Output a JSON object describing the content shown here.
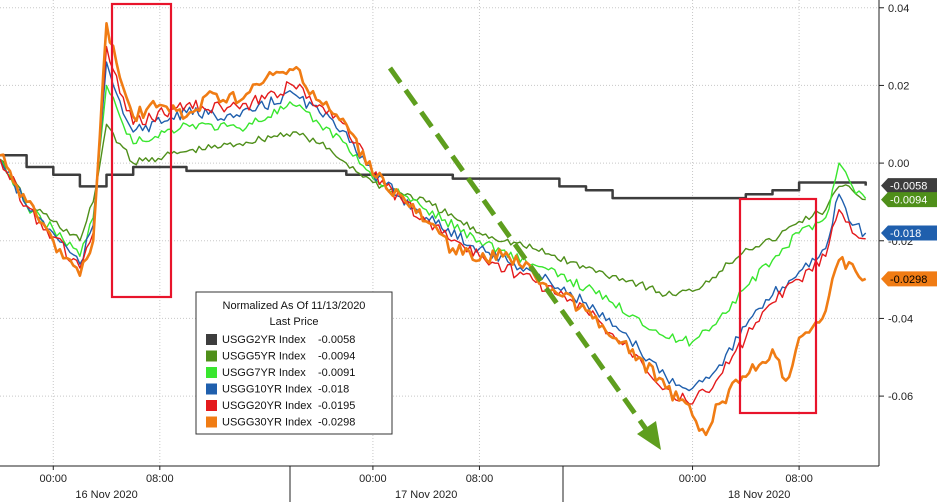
{
  "chart_data": {
    "type": "line",
    "title": "",
    "xlabel": "",
    "ylabel": "",
    "x_range": [
      "2020-11-15T20:00",
      "2020-11-18T14:00"
    ],
    "ylim": [
      -0.078,
      0.042
    ],
    "y_ticks": [
      0.04,
      0.02,
      0.0,
      -0.02,
      -0.04,
      -0.06
    ],
    "y_tick_labels": [
      "0.04",
      "0.02",
      "0.00",
      "-0.02",
      "-0.04",
      "-0.06"
    ],
    "x_ticks": [
      {
        "t": "2020-11-16T00:00",
        "label": "00:00"
      },
      {
        "t": "2020-11-16T08:00",
        "label": "08:00"
      },
      {
        "t": "2020-11-17T00:00",
        "label": "00:00"
      },
      {
        "t": "2020-11-17T08:00",
        "label": "08:00"
      },
      {
        "t": "2020-11-18T00:00",
        "label": "00:00"
      },
      {
        "t": "2020-11-18T08:00",
        "label": "08:00"
      }
    ],
    "date_labels": [
      {
        "t": "2020-11-16T04:00",
        "label": "16 Nov 2020"
      },
      {
        "t": "2020-11-17T04:00",
        "label": "17 Nov 2020"
      },
      {
        "t": "2020-11-18T05:00",
        "label": "18 Nov 2020"
      }
    ],
    "grid": true,
    "legend": {
      "placement": "bottom-center",
      "title_lines": [
        "Normalized As Of 11/13/2020",
        "Last Price"
      ],
      "entries": [
        {
          "label": "USGG2YR Index",
          "value": "-0.0058"
        },
        {
          "label": "USGG5YR Index",
          "value": "-0.0094"
        },
        {
          "label": "USGG7YR Index",
          "value": "-0.0091"
        },
        {
          "label": "USGG10YR Index",
          "value": "-0.018"
        },
        {
          "label": "USGG20YR Index",
          "value": "-0.0195"
        },
        {
          "label": "USGG30YR Index",
          "value": "-0.0298"
        }
      ]
    },
    "right_tags": [
      {
        "value": -0.0058,
        "label": "-0.0058",
        "color": "#3d3d3d",
        "text_color": "#ffffff"
      },
      {
        "value": -0.0094,
        "label": "-0.0094",
        "color": "#4f8f1a",
        "text_color": "#ffffff"
      },
      {
        "value": -0.018,
        "label": "-0.018",
        "color": "#1f5fad",
        "text_color": "#ffffff"
      },
      {
        "value": -0.0298,
        "label": "-0.0298",
        "color": "#f07c14",
        "text_color": "#000000"
      }
    ],
    "series": [
      {
        "name": "USGG2YR Index",
        "color": "#3d3d3d",
        "width": 2.5,
        "x": [
          "2020-11-15T20:00",
          "2020-11-15T22:00",
          "2020-11-16T00:00",
          "2020-11-16T02:00",
          "2020-11-16T03:00",
          "2020-11-16T04:00",
          "2020-11-16T06:00",
          "2020-11-16T10:00",
          "2020-11-16T14:00",
          "2020-11-16T18:00",
          "2020-11-16T22:00",
          "2020-11-17T00:00",
          "2020-11-17T06:00",
          "2020-11-17T10:00",
          "2020-11-17T14:00",
          "2020-11-17T16:00",
          "2020-11-17T18:00",
          "2020-11-17T20:00",
          "2020-11-17T22:00",
          "2020-11-18T00:00",
          "2020-11-18T02:00",
          "2020-11-18T04:00",
          "2020-11-18T06:00",
          "2020-11-18T08:00",
          "2020-11-18T10:00",
          "2020-11-18T12:00",
          "2020-11-18T13:00"
        ],
        "y": [
          0.002,
          -0.001,
          -0.003,
          -0.006,
          -0.006,
          -0.003,
          -0.001,
          -0.002,
          -0.002,
          -0.002,
          -0.003,
          -0.003,
          -0.004,
          -0.004,
          -0.006,
          -0.007,
          -0.009,
          -0.009,
          -0.009,
          -0.009,
          -0.009,
          -0.008,
          -0.007,
          -0.005,
          -0.005,
          -0.005,
          -0.0058
        ]
      },
      {
        "name": "USGG5YR Index",
        "color": "#4f8f1a",
        "width": 1.4,
        "x": [
          "2020-11-15T20:00",
          "2020-11-15T22:00",
          "2020-11-16T00:00",
          "2020-11-16T02:00",
          "2020-11-16T03:00",
          "2020-11-16T04:00",
          "2020-11-16T05:00",
          "2020-11-16T06:00",
          "2020-11-16T10:00",
          "2020-11-16T14:00",
          "2020-11-16T18:00",
          "2020-11-16T20:00",
          "2020-11-16T22:00",
          "2020-11-17T00:00",
          "2020-11-17T04:00",
          "2020-11-17T08:00",
          "2020-11-17T12:00",
          "2020-11-17T16:00",
          "2020-11-17T18:00",
          "2020-11-17T20:00",
          "2020-11-17T22:00",
          "2020-11-18T00:00",
          "2020-11-18T02:00",
          "2020-11-18T04:00",
          "2020-11-18T06:00",
          "2020-11-18T08:00",
          "2020-11-18T10:00",
          "2020-11-18T11:00",
          "2020-11-18T12:00",
          "2020-11-18T13:00"
        ],
        "y": [
          0.001,
          -0.01,
          -0.015,
          -0.02,
          -0.01,
          0.01,
          0.005,
          0.0,
          0.003,
          0.005,
          0.008,
          0.005,
          0.0,
          -0.005,
          -0.01,
          -0.018,
          -0.022,
          -0.027,
          -0.029,
          -0.031,
          -0.034,
          -0.033,
          -0.028,
          -0.022,
          -0.02,
          -0.015,
          -0.012,
          -0.006,
          -0.007,
          -0.0094
        ]
      },
      {
        "name": "USGG7YR Index",
        "color": "#39e62e",
        "width": 1.4,
        "x": [
          "2020-11-15T20:00",
          "2020-11-15T22:00",
          "2020-11-16T00:00",
          "2020-11-16T02:00",
          "2020-11-16T03:00",
          "2020-11-16T04:00",
          "2020-11-16T05:00",
          "2020-11-16T06:00",
          "2020-11-16T10:00",
          "2020-11-16T14:00",
          "2020-11-16T18:00",
          "2020-11-16T20:00",
          "2020-11-16T22:00",
          "2020-11-17T00:00",
          "2020-11-17T04:00",
          "2020-11-17T08:00",
          "2020-11-17T12:00",
          "2020-11-17T16:00",
          "2020-11-17T18:00",
          "2020-11-17T20:00",
          "2020-11-17T22:00",
          "2020-11-18T00:00",
          "2020-11-18T02:00",
          "2020-11-18T04:00",
          "2020-11-18T06:00",
          "2020-11-18T08:00",
          "2020-11-18T10:00",
          "2020-11-18T11:00",
          "2020-11-18T12:00",
          "2020-11-18T13:00"
        ],
        "y": [
          0.001,
          -0.011,
          -0.017,
          -0.024,
          -0.014,
          0.02,
          0.012,
          0.005,
          0.01,
          0.009,
          0.015,
          0.01,
          0.005,
          -0.004,
          -0.012,
          -0.02,
          -0.026,
          -0.032,
          -0.036,
          -0.04,
          -0.045,
          -0.046,
          -0.04,
          -0.032,
          -0.025,
          -0.018,
          -0.014,
          0.0,
          -0.006,
          -0.0091
        ]
      },
      {
        "name": "USGG10YR Index",
        "color": "#1f5fad",
        "width": 1.4,
        "x": [
          "2020-11-15T20:00",
          "2020-11-15T22:00",
          "2020-11-16T00:00",
          "2020-11-16T02:00",
          "2020-11-16T03:00",
          "2020-11-16T04:00",
          "2020-11-16T05:00",
          "2020-11-16T06:00",
          "2020-11-16T10:00",
          "2020-11-16T14:00",
          "2020-11-16T18:00",
          "2020-11-16T20:00",
          "2020-11-16T22:00",
          "2020-11-17T00:00",
          "2020-11-17T04:00",
          "2020-11-17T08:00",
          "2020-11-17T12:00",
          "2020-11-17T16:00",
          "2020-11-17T18:00",
          "2020-11-17T20:00",
          "2020-11-17T22:00",
          "2020-11-18T00:00",
          "2020-11-18T02:00",
          "2020-11-18T04:00",
          "2020-11-18T06:00",
          "2020-11-18T08:00",
          "2020-11-18T10:00",
          "2020-11-18T11:00",
          "2020-11-18T12:00",
          "2020-11-18T13:00"
        ],
        "y": [
          0.001,
          -0.011,
          -0.018,
          -0.026,
          -0.016,
          0.026,
          0.016,
          0.008,
          0.013,
          0.012,
          0.018,
          0.013,
          0.008,
          -0.003,
          -0.014,
          -0.022,
          -0.028,
          -0.036,
          -0.042,
          -0.048,
          -0.055,
          -0.058,
          -0.052,
          -0.042,
          -0.034,
          -0.028,
          -0.022,
          -0.008,
          -0.016,
          -0.018
        ]
      },
      {
        "name": "USGG20YR Index",
        "color": "#e41a1c",
        "width": 1.4,
        "x": [
          "2020-11-15T20:00",
          "2020-11-15T22:00",
          "2020-11-16T00:00",
          "2020-11-16T02:00",
          "2020-11-16T03:00",
          "2020-11-16T04:00",
          "2020-11-16T05:00",
          "2020-11-16T06:00",
          "2020-11-16T10:00",
          "2020-11-16T14:00",
          "2020-11-16T18:00",
          "2020-11-16T20:00",
          "2020-11-16T22:00",
          "2020-11-17T00:00",
          "2020-11-17T04:00",
          "2020-11-17T08:00",
          "2020-11-17T12:00",
          "2020-11-17T16:00",
          "2020-11-17T18:00",
          "2020-11-17T20:00",
          "2020-11-17T22:00",
          "2020-11-18T00:00",
          "2020-11-18T02:00",
          "2020-11-18T04:00",
          "2020-11-18T06:00",
          "2020-11-18T08:00",
          "2020-11-18T10:00",
          "2020-11-18T11:00",
          "2020-11-18T12:00",
          "2020-11-18T13:00"
        ],
        "y": [
          0.001,
          -0.011,
          -0.019,
          -0.027,
          -0.018,
          0.03,
          0.018,
          0.01,
          0.015,
          0.014,
          0.02,
          0.015,
          0.01,
          -0.003,
          -0.015,
          -0.024,
          -0.03,
          -0.038,
          -0.044,
          -0.05,
          -0.058,
          -0.062,
          -0.055,
          -0.045,
          -0.036,
          -0.03,
          -0.024,
          -0.012,
          -0.018,
          -0.0195
        ]
      },
      {
        "name": "USGG30YR Index",
        "color": "#f07c14",
        "width": 2.6,
        "x": [
          "2020-11-15T20:00",
          "2020-11-15T22:00",
          "2020-11-16T00:00",
          "2020-11-16T02:00",
          "2020-11-16T03:00",
          "2020-11-16T04:00",
          "2020-11-16T05:00",
          "2020-11-16T06:00",
          "2020-11-16T08:00",
          "2020-11-16T10:00",
          "2020-11-16T12:00",
          "2020-11-16T14:00",
          "2020-11-16T16:00",
          "2020-11-16T18:00",
          "2020-11-16T20:00",
          "2020-11-16T22:00",
          "2020-11-17T00:00",
          "2020-11-17T02:00",
          "2020-11-17T04:00",
          "2020-11-17T06:00",
          "2020-11-17T08:00",
          "2020-11-17T10:00",
          "2020-11-17T12:00",
          "2020-11-17T14:00",
          "2020-11-17T16:00",
          "2020-11-17T18:00",
          "2020-11-17T20:00",
          "2020-11-17T22:00",
          "2020-11-18T00:00",
          "2020-11-18T01:00",
          "2020-11-18T02:00",
          "2020-11-18T04:00",
          "2020-11-18T06:00",
          "2020-11-18T07:00",
          "2020-11-18T08:00",
          "2020-11-18T10:00",
          "2020-11-18T11:00",
          "2020-11-18T12:00",
          "2020-11-18T13:00"
        ],
        "y": [
          0.002,
          -0.01,
          -0.02,
          -0.029,
          -0.02,
          0.036,
          0.022,
          0.012,
          0.015,
          0.012,
          0.018,
          0.016,
          0.022,
          0.024,
          0.016,
          0.01,
          -0.003,
          -0.008,
          -0.015,
          -0.022,
          -0.025,
          -0.023,
          -0.028,
          -0.034,
          -0.038,
          -0.045,
          -0.05,
          -0.058,
          -0.065,
          -0.07,
          -0.062,
          -0.055,
          -0.048,
          -0.056,
          -0.045,
          -0.038,
          -0.025,
          -0.026,
          -0.0298
        ]
      }
    ]
  }
}
